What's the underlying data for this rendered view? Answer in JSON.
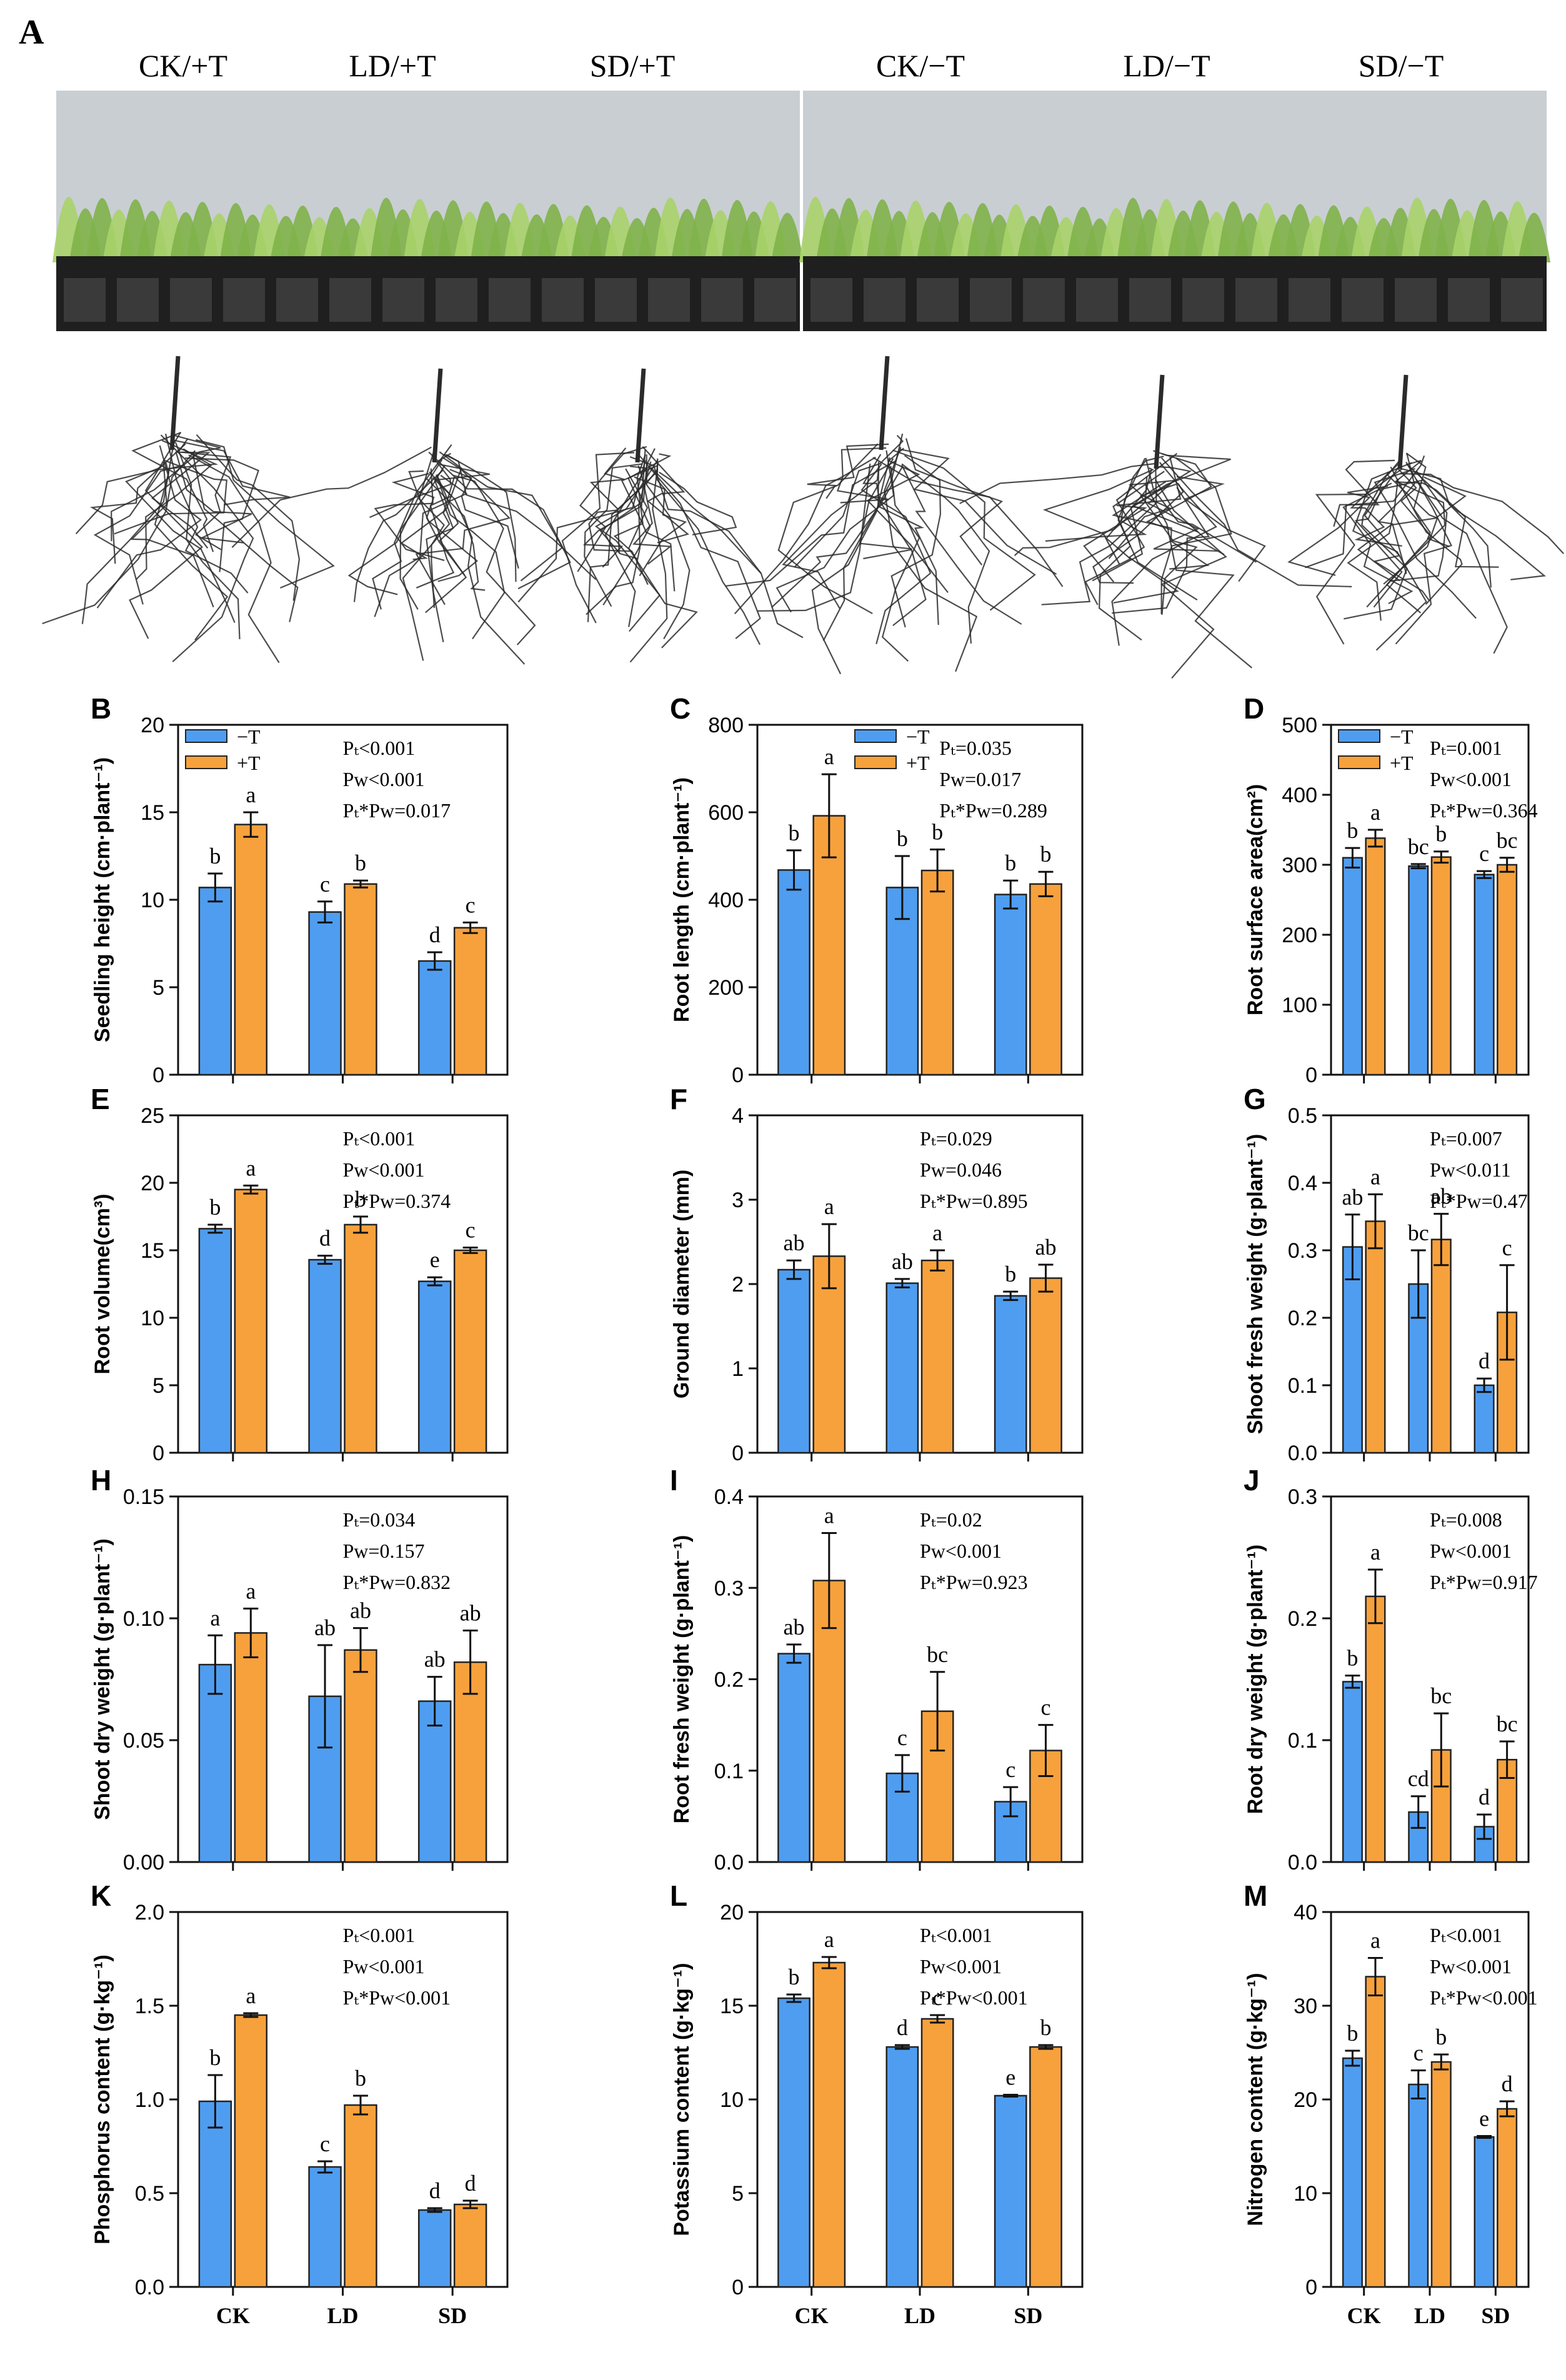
{
  "panel_a": {
    "letter": "A",
    "treatments": [
      "CK/+T",
      "LD/+T",
      "SD/+T",
      "CK/−T",
      "LD/−T",
      "SD/−T"
    ],
    "photo_colors": {
      "background": "#c9ced3",
      "foliage": "#7fb24a",
      "foliage_light": "#a9d36a",
      "trays": "#1f1f1f",
      "roots": "#2b2b2b"
    }
  },
  "colors": {
    "minus_t": "#4f9df0",
    "plus_t": "#f7a13c",
    "outline": "#1a1a1a"
  },
  "chart_data": [
    {
      "id": "B",
      "type": "bar",
      "ylabel": "Seedling height (cm·plant⁻¹)",
      "ylim": [
        0,
        20
      ],
      "yticks": [
        0,
        5,
        10,
        15,
        20
      ],
      "ytick_labels": [
        "0",
        "5",
        "10",
        "15",
        "20"
      ],
      "categories": [
        "CK",
        "LD",
        "SD"
      ],
      "show_categories": false,
      "legend": "top-left",
      "legend_labels": [
        "−T",
        "+T"
      ],
      "stats": [
        "Pₜ<0.001",
        "Pw<0.001",
        "Pₜ*Pᴡ=0.017"
      ],
      "series": [
        {
          "name": "−T",
          "values": [
            10.7,
            9.3,
            6.5
          ],
          "errors": [
            0.8,
            0.6,
            0.5
          ],
          "letters": [
            "b",
            "c",
            "d"
          ]
        },
        {
          "name": "+T",
          "values": [
            14.3,
            10.9,
            8.4
          ],
          "errors": [
            0.7,
            0.2,
            0.3
          ],
          "letters": [
            "a",
            "b",
            "c"
          ]
        }
      ]
    },
    {
      "id": "C",
      "type": "bar",
      "ylabel": "Root length (cm·plant⁻¹)",
      "ylim": [
        0,
        800
      ],
      "yticks": [
        0,
        200,
        400,
        600,
        800
      ],
      "ytick_labels": [
        "0",
        "200",
        "400",
        "600",
        "800"
      ],
      "categories": [
        "CK",
        "LD",
        "SD"
      ],
      "show_categories": false,
      "legend": "top-center",
      "legend_labels": [
        "−T",
        "+T"
      ],
      "stats": [
        "Pₜ=0.035",
        "Pw=0.017",
        "Pₜ*Pᴡ=0.289"
      ],
      "series": [
        {
          "name": "−T",
          "values": [
            468,
            428,
            412
          ],
          "errors": [
            45,
            72,
            32
          ],
          "letters": [
            "b",
            "b",
            "b"
          ]
        },
        {
          "name": "+T",
          "values": [
            592,
            467,
            436
          ],
          "errors": [
            95,
            48,
            28
          ],
          "letters": [
            "a",
            "b",
            "b"
          ]
        }
      ]
    },
    {
      "id": "D",
      "type": "bar",
      "ylabel": "Root surface area(cm²)",
      "ylim": [
        0,
        500
      ],
      "yticks": [
        0,
        100,
        200,
        300,
        400,
        500
      ],
      "ytick_labels": [
        "0",
        "100",
        "200",
        "300",
        "400",
        "500"
      ],
      "categories": [
        "CK",
        "LD",
        "SD"
      ],
      "show_categories": false,
      "legend": "top-left",
      "legend_labels": [
        "−T",
        "+T"
      ],
      "stats": [
        "Pₜ=0.001",
        "Pᴡ<0.001",
        "Pₜ*Pᴡ=0.364"
      ],
      "series": [
        {
          "name": "−T",
          "values": [
            310,
            298,
            286
          ],
          "errors": [
            14,
            3,
            5
          ],
          "letters": [
            "b",
            "bc",
            "c"
          ]
        },
        {
          "name": "+T",
          "values": [
            338,
            311,
            300
          ],
          "errors": [
            12,
            8,
            10
          ],
          "letters": [
            "a",
            "b",
            "bc"
          ]
        }
      ]
    },
    {
      "id": "E",
      "type": "bar",
      "ylabel": "Root volume(cm³)",
      "ylim": [
        0,
        25
      ],
      "yticks": [
        0,
        5,
        10,
        15,
        20,
        25
      ],
      "ytick_labels": [
        "0",
        "5",
        "10",
        "15",
        "20",
        "25"
      ],
      "categories": [
        "CK",
        "LD",
        "SD"
      ],
      "show_categories": false,
      "legend": "none",
      "stats": [
        "Pₜ<0.001",
        "Pᴡ<0.001",
        "Pₜ*Pᴡ=0.374"
      ],
      "series": [
        {
          "name": "−T",
          "values": [
            16.6,
            14.3,
            12.7
          ],
          "errors": [
            0.3,
            0.3,
            0.3
          ],
          "letters": [
            "b",
            "d",
            "e"
          ]
        },
        {
          "name": "+T",
          "values": [
            19.5,
            16.9,
            15.0
          ],
          "errors": [
            0.3,
            0.6,
            0.2
          ],
          "letters": [
            "a",
            "b",
            "c"
          ]
        }
      ]
    },
    {
      "id": "F",
      "type": "bar",
      "ylabel": "Ground diameter (mm)",
      "ylim": [
        0,
        4
      ],
      "yticks": [
        0,
        1,
        2,
        3,
        4
      ],
      "ytick_labels": [
        "0",
        "1",
        "2",
        "3",
        "4"
      ],
      "categories": [
        "CK",
        "LD",
        "SD"
      ],
      "show_categories": false,
      "legend": "none",
      "stats": [
        "Pₜ=0.029",
        "Pᴡ=0.046",
        "Pₜ*Pᴡ=0.895"
      ],
      "series": [
        {
          "name": "−T",
          "values": [
            2.17,
            2.01,
            1.86
          ],
          "errors": [
            0.11,
            0.05,
            0.05
          ],
          "letters": [
            "ab",
            "ab",
            "b"
          ]
        },
        {
          "name": "+T",
          "values": [
            2.33,
            2.28,
            2.07
          ],
          "errors": [
            0.38,
            0.12,
            0.16
          ],
          "letters": [
            "a",
            "a",
            "ab"
          ]
        }
      ]
    },
    {
      "id": "G",
      "type": "bar",
      "ylabel": "Shoot fresh weight (g·plant⁻¹)",
      "ylim": [
        0,
        0.5
      ],
      "yticks": [
        0,
        0.1,
        0.2,
        0.3,
        0.4,
        0.5
      ],
      "ytick_labels": [
        "0.0",
        "0.1",
        "0.2",
        "0.3",
        "0.4",
        "0.5"
      ],
      "categories": [
        "CK",
        "LD",
        "SD"
      ],
      "show_categories": false,
      "legend": "none",
      "stats": [
        "Pₜ=0.007",
        "Pᴡ<0.011",
        "Pₜ*Pᴡ=0.47"
      ],
      "series": [
        {
          "name": "−T",
          "values": [
            0.305,
            0.25,
            0.1
          ],
          "errors": [
            0.048,
            0.05,
            0.01
          ],
          "letters": [
            "ab",
            "bc",
            "d"
          ]
        },
        {
          "name": "+T",
          "values": [
            0.343,
            0.316,
            0.208
          ],
          "errors": [
            0.04,
            0.038,
            0.07
          ],
          "letters": [
            "a",
            "ab",
            "c"
          ]
        }
      ]
    },
    {
      "id": "H",
      "type": "bar",
      "ylabel": "Shoot dry weight (g·plant⁻¹)",
      "ylim": [
        0,
        0.15
      ],
      "yticks": [
        0,
        0.05,
        0.1,
        0.15
      ],
      "ytick_labels": [
        "0.00",
        "0.05",
        "0.10",
        "0.15"
      ],
      "categories": [
        "CK",
        "LD",
        "SD"
      ],
      "show_categories": false,
      "legend": "none",
      "stats": [
        "Pₜ=0.034",
        "Pᴡ=0.157",
        "Pₜ*Pᴡ=0.832"
      ],
      "series": [
        {
          "name": "−T",
          "values": [
            0.081,
            0.068,
            0.066
          ],
          "errors": [
            0.012,
            0.021,
            0.01
          ],
          "letters": [
            "a",
            "ab",
            "ab"
          ]
        },
        {
          "name": "+T",
          "values": [
            0.094,
            0.087,
            0.082
          ],
          "errors": [
            0.01,
            0.009,
            0.013
          ],
          "letters": [
            "a",
            "ab",
            "ab"
          ]
        }
      ]
    },
    {
      "id": "I",
      "type": "bar",
      "ylabel": "Root fresh weight (g·plant⁻¹)",
      "ylim": [
        0,
        0.4
      ],
      "yticks": [
        0,
        0.1,
        0.2,
        0.3,
        0.4
      ],
      "ytick_labels": [
        "0.0",
        "0.1",
        "0.2",
        "0.3",
        "0.4"
      ],
      "categories": [
        "CK",
        "LD",
        "SD"
      ],
      "show_categories": false,
      "legend": "none",
      "stats": [
        "Pₜ=0.02",
        "Pᴡ<0.001",
        "Pₜ*Pᴡ=0.923"
      ],
      "series": [
        {
          "name": "−T",
          "values": [
            0.228,
            0.097,
            0.066
          ],
          "errors": [
            0.01,
            0.02,
            0.016
          ],
          "letters": [
            "ab",
            "c",
            "c"
          ]
        },
        {
          "name": "+T",
          "values": [
            0.308,
            0.165,
            0.122
          ],
          "errors": [
            0.052,
            0.043,
            0.028
          ],
          "letters": [
            "a",
            "bc",
            "c"
          ]
        }
      ]
    },
    {
      "id": "J",
      "type": "bar",
      "ylabel": "Root dry weight (g·plant⁻¹)",
      "ylim": [
        0,
        0.3
      ],
      "yticks": [
        0,
        0.1,
        0.2,
        0.3
      ],
      "ytick_labels": [
        "0.0",
        "0.1",
        "0.2",
        "0.3"
      ],
      "categories": [
        "CK",
        "LD",
        "SD"
      ],
      "show_categories": false,
      "legend": "none",
      "stats": [
        "Pₜ=0.008",
        "Pᴡ<0.001",
        "Pₜ*Pᴡ=0.917"
      ],
      "series": [
        {
          "name": "−T",
          "values": [
            0.148,
            0.041,
            0.029
          ],
          "errors": [
            0.005,
            0.013,
            0.01
          ],
          "letters": [
            "b",
            "cd",
            "d"
          ]
        },
        {
          "name": "+T",
          "values": [
            0.218,
            0.092,
            0.084
          ],
          "errors": [
            0.022,
            0.03,
            0.015
          ],
          "letters": [
            "a",
            "bc",
            "bc"
          ]
        }
      ]
    },
    {
      "id": "K",
      "type": "bar",
      "ylabel": "Phosphorus content (g·kg⁻¹)",
      "ylim": [
        0,
        2
      ],
      "yticks": [
        0,
        0.5,
        1,
        1.5,
        2
      ],
      "ytick_labels": [
        "0.0",
        "0.5",
        "1.0",
        "1.5",
        "2.0"
      ],
      "categories": [
        "CK",
        "LD",
        "SD"
      ],
      "show_categories": true,
      "legend": "none",
      "stats": [
        "Pₜ<0.001",
        "Pᴡ<0.001",
        "Pₜ*Pᴡ<0.001"
      ],
      "series": [
        {
          "name": "−T",
          "values": [
            0.99,
            0.64,
            0.41
          ],
          "errors": [
            0.14,
            0.03,
            0.01
          ],
          "letters": [
            "b",
            "c",
            "d"
          ]
        },
        {
          "name": "+T",
          "values": [
            1.45,
            0.97,
            0.44
          ],
          "errors": [
            0.01,
            0.05,
            0.02
          ],
          "letters": [
            "a",
            "b",
            "d"
          ]
        }
      ]
    },
    {
      "id": "L",
      "type": "bar",
      "ylabel": "Potassium content (g·kg⁻¹)",
      "ylim": [
        0,
        20
      ],
      "yticks": [
        0,
        5,
        10,
        15,
        20
      ],
      "ytick_labels": [
        "0",
        "5",
        "10",
        "15",
        "20"
      ],
      "categories": [
        "CK",
        "LD",
        "SD"
      ],
      "show_categories": true,
      "legend": "none",
      "stats": [
        "Pₜ<0.001",
        "Pᴡ<0.001",
        "Pₜ*Pᴡ<0.001"
      ],
      "series": [
        {
          "name": "−T",
          "values": [
            15.4,
            12.8,
            10.2
          ],
          "errors": [
            0.2,
            0.1,
            0.05
          ],
          "letters": [
            "b",
            "d",
            "e"
          ]
        },
        {
          "name": "+T",
          "values": [
            17.3,
            14.3,
            12.8
          ],
          "errors": [
            0.3,
            0.2,
            0.1
          ],
          "letters": [
            "a",
            "c",
            "b"
          ]
        }
      ]
    },
    {
      "id": "M",
      "type": "bar",
      "ylabel": "Nitrogen content (g·kg⁻¹)",
      "ylim": [
        0,
        40
      ],
      "yticks": [
        0,
        10,
        20,
        30,
        40
      ],
      "ytick_labels": [
        "0",
        "10",
        "20",
        "30",
        "40"
      ],
      "categories": [
        "CK",
        "LD",
        "SD"
      ],
      "show_categories": true,
      "legend": "none",
      "stats": [
        "Pₜ<0.001",
        "Pᴡ<0.001",
        "Pₜ*Pᴡ<0.001"
      ],
      "series": [
        {
          "name": "−T",
          "values": [
            24.4,
            21.6,
            16.0
          ],
          "errors": [
            0.8,
            1.5,
            0.1
          ],
          "letters": [
            "b",
            "c",
            "e"
          ]
        },
        {
          "name": "+T",
          "values": [
            33.1,
            24.0,
            19.0
          ],
          "errors": [
            2.0,
            0.8,
            0.8
          ],
          "letters": [
            "a",
            "b",
            "d"
          ]
        }
      ]
    }
  ]
}
